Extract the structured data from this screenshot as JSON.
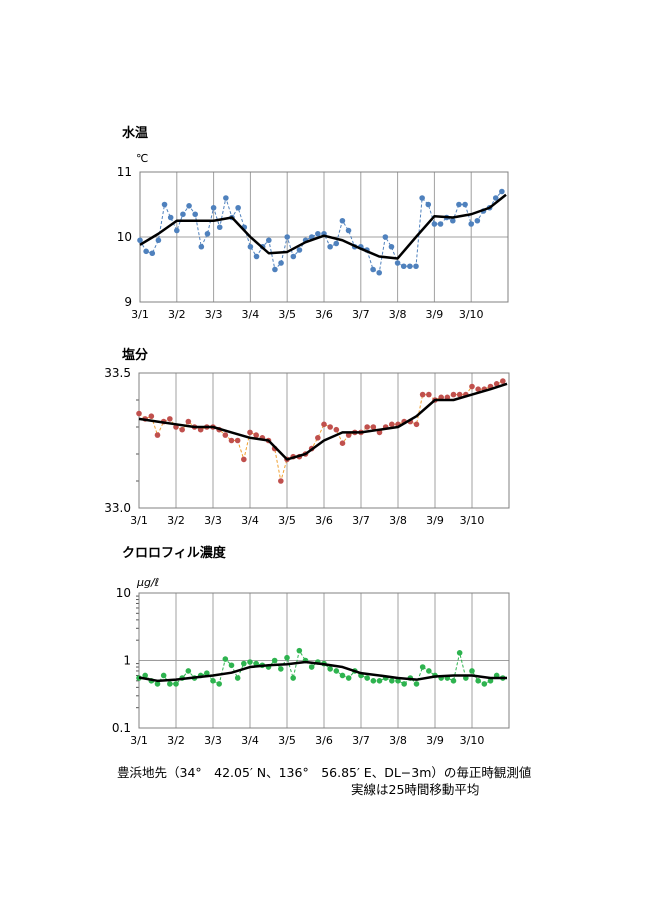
{
  "caption": {
    "line1": "豊浜地先（34°　42.05′ N、136°　56.85′ E、DL−3m）の毎正時観測値",
    "line2": "実線は25時間移動平均"
  },
  "chart_data": [
    {
      "type": "line",
      "title": "水温",
      "ylabel": "℃",
      "ylim": [
        9,
        11
      ],
      "yscale": "linear",
      "yticks": [
        "9",
        "10",
        "11"
      ],
      "xlim": [
        "3/1 00:00",
        "3/11 00:00"
      ],
      "xticks": [
        "3/1",
        "3/2",
        "3/3",
        "3/4",
        "3/5",
        "3/6",
        "3/7",
        "3/8",
        "3/9",
        "3/10"
      ],
      "grid": true,
      "colors": {
        "points": "#4f81bd",
        "connector": "#4f81bd",
        "average": "#000000"
      },
      "observed": {
        "start": "3/1 00:00",
        "interval_hours": 4,
        "values": [
          9.95,
          9.78,
          9.75,
          9.95,
          10.5,
          10.3,
          10.1,
          10.35,
          10.48,
          10.35,
          9.85,
          10.05,
          10.45,
          10.15,
          10.6,
          10.3,
          10.45,
          10.15,
          9.85,
          9.7,
          9.85,
          9.95,
          9.5,
          9.6,
          10.0,
          9.7,
          9.8,
          9.95,
          10.0,
          10.05,
          10.05,
          9.85,
          9.9,
          10.25,
          10.1,
          9.85,
          9.85,
          9.8,
          9.5,
          9.45,
          10.0,
          9.85,
          9.6,
          9.55,
          9.55,
          9.55,
          10.6,
          10.5,
          10.2,
          10.2,
          10.3,
          10.25,
          10.5,
          10.5,
          10.2,
          10.25,
          10.4,
          10.45,
          10.6,
          10.7
        ]
      },
      "moving_average": {
        "start": "3/1 00:00",
        "interval_hours": 12,
        "values": [
          9.88,
          10.05,
          10.25,
          10.25,
          10.25,
          10.3,
          10.0,
          9.75,
          9.77,
          9.92,
          10.02,
          9.95,
          9.82,
          9.7,
          9.67,
          10.0,
          10.32,
          10.3,
          10.35,
          10.45,
          10.65
        ]
      }
    },
    {
      "type": "line",
      "title": "塩分",
      "ylabel": "",
      "ylim": [
        33.0,
        33.5
      ],
      "yscale": "linear",
      "yticks": [
        "33.0",
        "33.5"
      ],
      "xlim": [
        "3/1 00:00",
        "3/11 00:00"
      ],
      "xticks": [
        "3/1",
        "3/2",
        "3/3",
        "3/4",
        "3/5",
        "3/6",
        "3/7",
        "3/8",
        "3/9",
        "3/10"
      ],
      "grid": true,
      "colors": {
        "points": "#c0504d",
        "connector": "#f0a030",
        "average": "#000000"
      },
      "observed": {
        "start": "3/1 00:00",
        "interval_hours": 4,
        "values": [
          33.35,
          33.33,
          33.34,
          33.27,
          33.32,
          33.33,
          33.3,
          33.29,
          33.32,
          33.3,
          33.29,
          33.3,
          33.3,
          33.29,
          33.27,
          33.25,
          33.25,
          33.18,
          33.28,
          33.27,
          33.26,
          33.25,
          33.22,
          33.1,
          33.18,
          33.19,
          33.19,
          33.2,
          33.22,
          33.26,
          33.31,
          33.3,
          33.29,
          33.24,
          33.27,
          33.28,
          33.28,
          33.3,
          33.3,
          33.28,
          33.3,
          33.31,
          33.31,
          33.32,
          33.32,
          33.31,
          33.42,
          33.42,
          33.4,
          33.41,
          33.41,
          33.42,
          33.42,
          33.42,
          33.45,
          33.44,
          33.44,
          33.45,
          33.46,
          33.47
        ]
      },
      "moving_average": {
        "start": "3/1 00:00",
        "interval_hours": 12,
        "values": [
          33.33,
          33.32,
          33.31,
          33.3,
          33.3,
          33.28,
          33.26,
          33.25,
          33.18,
          33.2,
          33.25,
          33.28,
          33.28,
          33.29,
          33.3,
          33.34,
          33.4,
          33.4,
          33.42,
          33.44,
          33.46
        ]
      }
    },
    {
      "type": "line",
      "title": "クロロフィル濃度",
      "ylabel": "μg/ℓ",
      "ylim": [
        0.1,
        10
      ],
      "yscale": "log",
      "yticks": [
        "0.1",
        "1",
        "10"
      ],
      "xlim": [
        "3/1 00:00",
        "3/11 00:00"
      ],
      "xticks": [
        "3/1",
        "3/2",
        "3/3",
        "3/4",
        "3/5",
        "3/6",
        "3/7",
        "3/8",
        "3/9",
        "3/10"
      ],
      "grid": true,
      "colors": {
        "points": "#2eb34f",
        "connector": "#2eb34f",
        "average": "#000000"
      },
      "observed": {
        "start": "3/1 00:00",
        "interval_hours": 4,
        "values": [
          0.55,
          0.6,
          0.5,
          0.45,
          0.6,
          0.45,
          0.45,
          0.55,
          0.7,
          0.55,
          0.6,
          0.65,
          0.5,
          0.45,
          1.05,
          0.85,
          0.55,
          0.9,
          0.95,
          0.9,
          0.85,
          0.8,
          1.0,
          0.75,
          1.1,
          0.55,
          1.4,
          1.0,
          0.8,
          0.95,
          0.9,
          0.75,
          0.7,
          0.6,
          0.55,
          0.7,
          0.6,
          0.55,
          0.5,
          0.5,
          0.55,
          0.5,
          0.5,
          0.45,
          0.55,
          0.45,
          0.8,
          0.7,
          0.6,
          0.55,
          0.55,
          0.5,
          1.3,
          0.55,
          0.7,
          0.5,
          0.45,
          0.5,
          0.6,
          0.55
        ]
      },
      "moving_average": {
        "start": "3/1 00:00",
        "interval_hours": 12,
        "values": [
          0.56,
          0.5,
          0.52,
          0.56,
          0.6,
          0.66,
          0.8,
          0.85,
          0.88,
          0.95,
          0.88,
          0.8,
          0.65,
          0.6,
          0.55,
          0.52,
          0.58,
          0.6,
          0.6,
          0.55,
          0.55
        ]
      }
    }
  ]
}
